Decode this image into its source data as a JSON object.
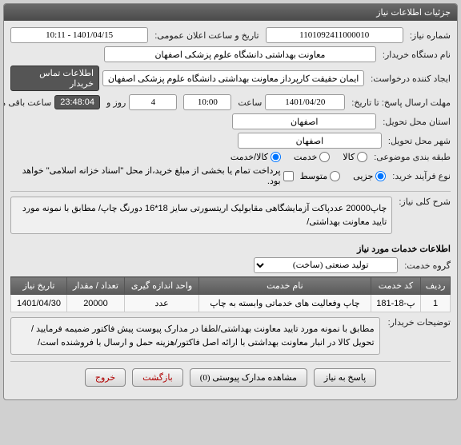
{
  "window_title": "جزئیات اطلاعات نیاز",
  "req_no_label": "شماره نیاز:",
  "req_no": "1101092411000010",
  "ann_date_label": "تاریخ و ساعت اعلان عمومی:",
  "ann_date": "1401/04/15 - 10:11",
  "buyer_org_label": "نام دستگاه خریدار:",
  "buyer_org": "معاونت بهداشتی دانشگاه علوم پزشکی اصفهان",
  "creator_label": "ایجاد کننده درخواست:",
  "creator": "ایمان حقیقت کارپرداز معاونت بهداشتی دانشگاه علوم پزشکی اصفهان",
  "contact_btn": "اطلاعات تماس خریدار",
  "deadline_label": "مهلت ارسال پاسخ: تا تاریخ:",
  "deadline_date": "1401/04/20",
  "time_label": "ساعت",
  "deadline_time": "10:00",
  "days": "4",
  "days_label": "روز و",
  "remain_time": "23:48:04",
  "remain_label": "ساعت باقی مانده",
  "province_label": "استان محل تحویل:",
  "province": "اصفهان",
  "city_label": "شهر محل تحویل:",
  "city": "اصفهان",
  "subject_type_label": "طبقه بندی موضوعی:",
  "opt_goods": "کالا",
  "opt_service": "خدمت",
  "opt_goods_service": "کالا/خدمت",
  "process_type_label": "نوع فرآیند خرید:",
  "opt_detail": "جزیی",
  "opt_medium": "متوسط",
  "payment_note": "پرداخت تمام یا بخشی از مبلغ خرید،از محل \"اسناد خزانه اسلامی\" خواهد بود.",
  "gen_desc_label": "شرح کلی نیاز:",
  "gen_desc": "چاپ20000 عددپاکت آزمایشگاهی مقابولیک اریتسورتی سایز 18*16 دورنگ چاپ/ مطابق با نمونه مورد تایید معاونت بهداشتی/",
  "items_section": "اطلاعات خدمات مورد نیاز",
  "group_label": "گروه خدمت:",
  "group": "تولید صنعتی (ساخت)",
  "table": {
    "headers": [
      "ردیف",
      "کد خدمت",
      "نام خدمت",
      "واحد اندازه گیری",
      "تعداد / مقدار",
      "تاریخ نیاز"
    ],
    "row": [
      "1",
      "پ-18-181",
      "چاپ وفعالیت های خدماتی وابسته به چاپ",
      "عدد",
      "20000",
      "1401/04/30"
    ]
  },
  "buyer_note_label": "توضیحات خریدار:",
  "buyer_note": "مطابق با نمونه مورد تایید معاونت بهداشتی/لطفا در مدارک پیوست پیش فاکتور ضمیمه فرمایید /تحویل کالا در انبار معاونت بهداشتی با ارائه اصل فاکتور/هزینه حمل و ارسال با فروشنده است/",
  "btn_reply": "پاسخ به نیاز",
  "btn_attach": "مشاهده مدارک پیوستی (0)",
  "btn_back": "بازگشت",
  "btn_exit": "خروج"
}
